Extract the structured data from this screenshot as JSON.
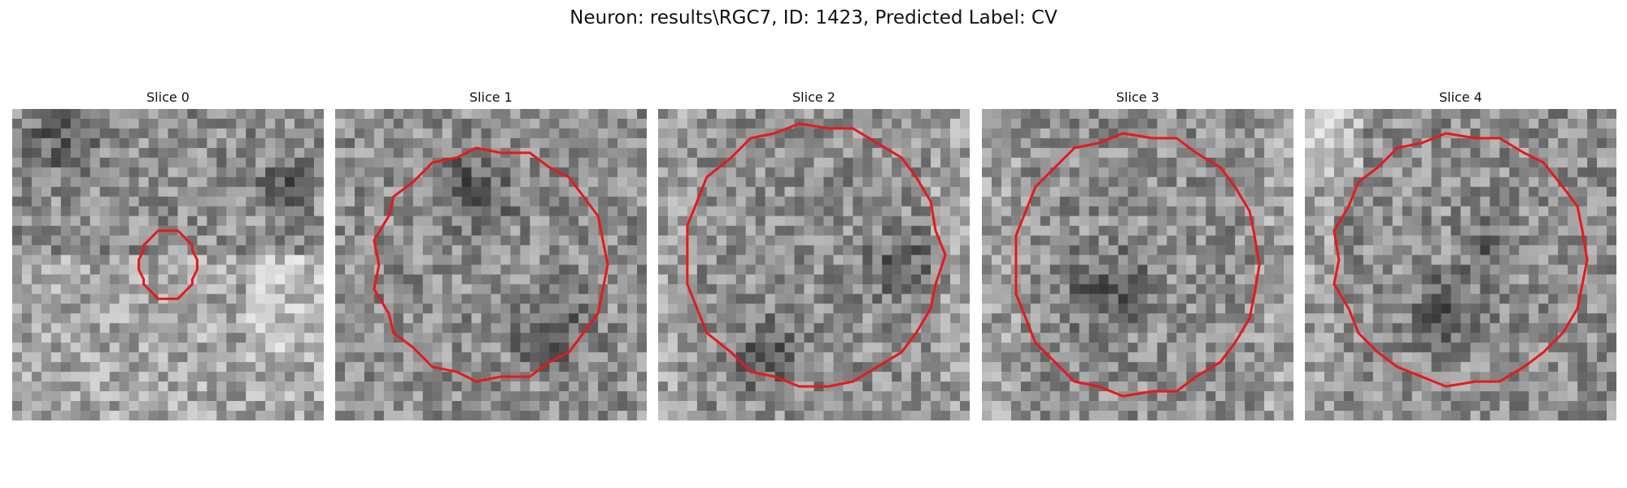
{
  "figure": {
    "title": "Neuron: results\\RGC7, ID: 1423, Predicted Label: CV"
  },
  "colors": {
    "background": "#ffffff",
    "contour": "#e41a1c",
    "pixel_palette": "grayscale"
  },
  "panels": [
    {
      "title": "Slice 0"
    },
    {
      "title": "Slice 1"
    },
    {
      "title": "Slice 2"
    },
    {
      "title": "Slice 3"
    },
    {
      "title": "Slice 4"
    }
  ]
}
